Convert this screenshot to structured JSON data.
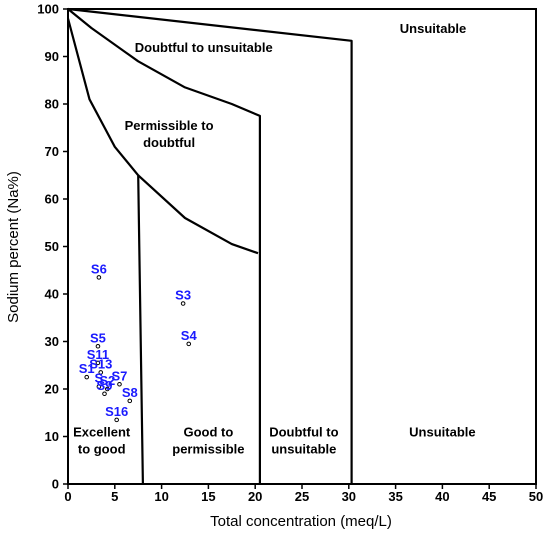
{
  "chart_data": {
    "type": "scatter",
    "title": "",
    "xlabel": "Total concentration (meq/L)",
    "ylabel": "Sodium percent (Na%)",
    "xlim": [
      0,
      50
    ],
    "ylim": [
      0,
      100
    ],
    "xticks": [
      0,
      5,
      10,
      15,
      20,
      25,
      30,
      35,
      40,
      45,
      50
    ],
    "yticks": [
      0,
      10,
      20,
      30,
      40,
      50,
      60,
      70,
      80,
      90,
      100
    ],
    "grid": false,
    "boundaries": [
      {
        "points": [
          [
            0,
            100
          ],
          [
            2.5,
            96
          ],
          [
            7.5,
            89
          ],
          [
            12.5,
            83.5
          ],
          [
            17.5,
            80
          ],
          [
            20.5,
            77.5
          ],
          [
            20.5,
            0
          ]
        ]
      },
      {
        "points": [
          [
            0,
            100
          ],
          [
            30.3,
            93.3
          ],
          [
            30.3,
            0
          ]
        ]
      },
      {
        "points": [
          [
            0,
            98
          ],
          [
            2.3,
            81
          ],
          [
            5,
            71
          ],
          [
            7.5,
            65
          ],
          [
            8,
            0
          ]
        ]
      },
      {
        "points": [
          [
            7.5,
            65
          ],
          [
            12.5,
            56
          ],
          [
            17.5,
            50.5
          ],
          [
            20.3,
            48.6
          ]
        ]
      }
    ],
    "regions": [
      {
        "lines": [
          "Unsuitable"
        ],
        "x": 39,
        "y": 95
      },
      {
        "lines": [
          "Doubtful to unsuitable"
        ],
        "x": 14.5,
        "y": 91
      },
      {
        "lines": [
          "Permissible to",
          "doubtful"
        ],
        "x": 10.8,
        "y": 74.5
      },
      {
        "lines": [
          "Excellent",
          "to good"
        ],
        "x": 3.6,
        "y": 10
      },
      {
        "lines": [
          "Good to",
          "permissible"
        ],
        "x": 15,
        "y": 10
      },
      {
        "lines": [
          "Doubtful to",
          "unsuitable"
        ],
        "x": 25.2,
        "y": 10
      },
      {
        "lines": [
          "Unsuitable"
        ],
        "x": 40,
        "y": 10
      }
    ],
    "series": [
      {
        "points": [
          {
            "label": "S6",
            "x": 3.3,
            "y": 43.5
          },
          {
            "label": "S3",
            "x": 12.3,
            "y": 38
          },
          {
            "label": "S4",
            "x": 12.9,
            "y": 29.5
          },
          {
            "label": "S5",
            "x": 3.2,
            "y": 29
          },
          {
            "label": "S11",
            "x": 3.2,
            "y": 25.5
          },
          {
            "label": "S13",
            "x": 3.5,
            "y": 23.5
          },
          {
            "label": "S1",
            "x": 2.0,
            "y": 22.5
          },
          {
            "label": "S7",
            "x": 5.5,
            "y": 21
          },
          {
            "label": "S",
            "x": 3.3,
            "y": 20.5
          },
          {
            "label": "S2",
            "x": 4.2,
            "y": 20
          },
          {
            "label": "S9",
            "x": 3.9,
            "y": 19
          },
          {
            "label": "S8",
            "x": 6.6,
            "y": 17.5
          },
          {
            "label": "S16",
            "x": 5.2,
            "y": 13.5
          }
        ]
      }
    ]
  }
}
